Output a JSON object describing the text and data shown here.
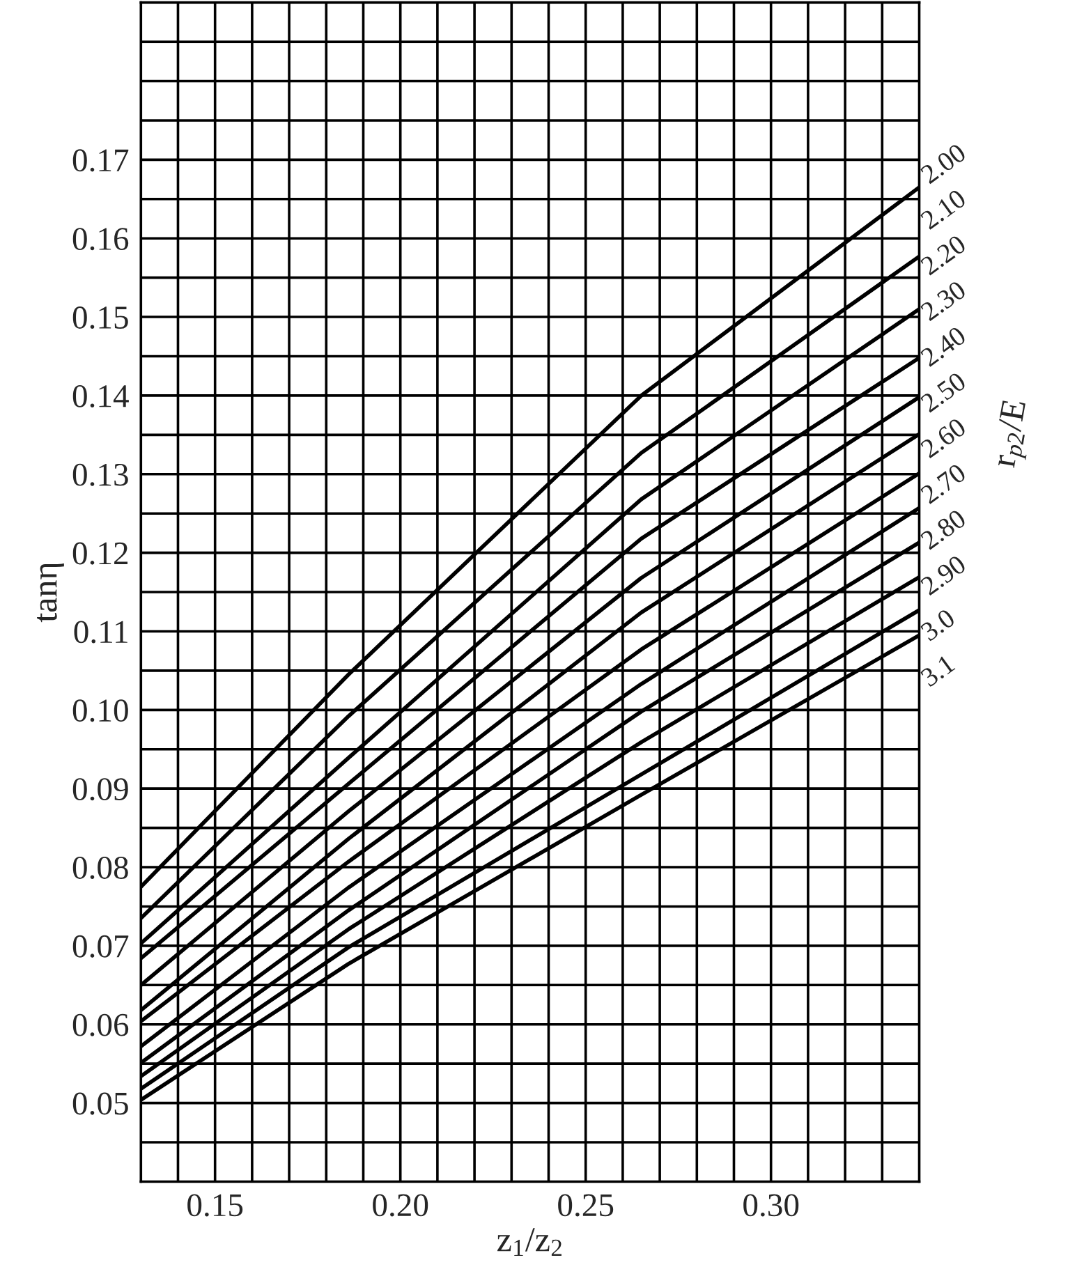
{
  "chart_data": {
    "type": "line",
    "xlabel": "z$_{1}$/z$_{2}$",
    "ylabel": "tanη",
    "legend_title": "r$_{p2}$/E",
    "x": [
      0.13,
      0.186,
      0.265,
      0.34
    ],
    "series": [
      {
        "name": "2.00",
        "color": "#000000",
        "values": [
          0.0775,
          0.1045,
          0.14,
          0.1665
        ]
      },
      {
        "name": "2.10",
        "color": "#000000",
        "values": [
          0.0735,
          0.0992,
          0.1327,
          0.1577
        ]
      },
      {
        "name": "2.20",
        "color": "#000000",
        "values": [
          0.0703,
          0.0939,
          0.1268,
          0.151
        ]
      },
      {
        "name": "2.30",
        "color": "#000000",
        "values": [
          0.0684,
          0.0906,
          0.1218,
          0.1448
        ]
      },
      {
        "name": "2.40",
        "color": "#000000",
        "values": [
          0.065,
          0.0871,
          0.1168,
          0.1398
        ]
      },
      {
        "name": "2.50",
        "color": "#000000",
        "values": [
          0.0618,
          0.0836,
          0.1124,
          0.1351
        ]
      },
      {
        "name": "2.60",
        "color": "#000000",
        "values": [
          0.0604,
          0.0807,
          0.1077,
          0.1301
        ]
      },
      {
        "name": "2.70",
        "color": "#000000",
        "values": [
          0.0572,
          0.0774,
          0.1033,
          0.1257
        ]
      },
      {
        "name": "2.80",
        "color": "#000000",
        "values": [
          0.0551,
          0.0745,
          0.0998,
          0.1213
        ]
      },
      {
        "name": "2.90",
        "color": "#000000",
        "values": [
          0.0534,
          0.0721,
          0.0959,
          0.1169
        ]
      },
      {
        "name": "3.0",
        "color": "#000000",
        "values": [
          0.0518,
          0.0698,
          0.0918,
          0.1127
        ]
      },
      {
        "name": "3.1",
        "color": "#000000",
        "values": [
          0.0504,
          0.0677,
          0.0892,
          0.1095
        ]
      }
    ],
    "xlim": [
      0.13,
      0.34
    ],
    "xticks": [
      {
        "value": 0.14,
        "label": null
      },
      0.15,
      {
        "value": 0.16,
        "label": null
      },
      {
        "value": 0.17,
        "label": null
      },
      {
        "value": 0.18,
        "label": null
      },
      {
        "value": 0.19,
        "label": null
      },
      {
        "value": 0.2,
        "label": "0.20"
      },
      {
        "value": 0.21,
        "label": null
      },
      {
        "value": 0.22,
        "label": null
      },
      {
        "value": 0.23,
        "label": null
      },
      {
        "value": 0.24,
        "label": null
      },
      0.25,
      {
        "value": 0.26,
        "label": null
      },
      {
        "value": 0.27,
        "label": null
      },
      {
        "value": 0.28,
        "label": null
      },
      {
        "value": 0.29,
        "label": null
      },
      {
        "value": 0.3,
        "label": "0.30"
      },
      {
        "value": 0.31,
        "label": null
      },
      {
        "value": 0.32,
        "label": null
      },
      {
        "value": 0.33,
        "label": null
      }
    ],
    "ylim": [
      0.04,
      0.19
    ],
    "yticks": [
      {
        "value": 0.045,
        "label": null
      },
      0.05,
      {
        "value": 0.055,
        "label": null
      },
      0.06,
      {
        "value": 0.065,
        "label": null
      },
      0.07,
      {
        "value": 0.075,
        "label": null
      },
      0.08,
      {
        "value": 0.085,
        "label": null
      },
      0.09,
      {
        "value": 0.095,
        "label": null
      },
      {
        "value": 0.1,
        "label": "0.10"
      },
      {
        "value": 0.105,
        "label": null
      },
      0.11,
      {
        "value": 0.115,
        "label": null
      },
      0.12,
      {
        "value": 0.125,
        "label": null
      },
      0.13,
      {
        "value": 0.135,
        "label": null
      },
      0.14,
      {
        "value": 0.145,
        "label": null
      },
      0.15,
      {
        "value": 0.155,
        "label": null
      },
      0.16,
      {
        "value": 0.165,
        "label": null
      },
      0.17,
      {
        "value": 0.175,
        "label": null
      },
      {
        "value": 0.18,
        "label": null
      },
      {
        "value": 0.185,
        "label": null
      }
    ],
    "grid": true,
    "line_style": "solid"
  }
}
